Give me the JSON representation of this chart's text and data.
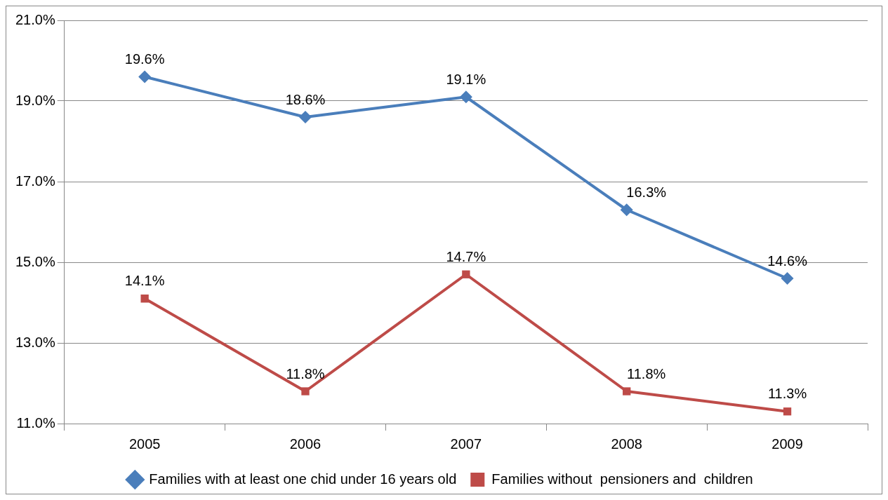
{
  "chart_data": {
    "type": "line",
    "categories": [
      "2005",
      "2006",
      "2007",
      "2008",
      "2009"
    ],
    "series": [
      {
        "name": "Families with at least one chid under 16 years old",
        "color": "#4a7ebb",
        "marker": "diamond",
        "values": [
          19.6,
          18.6,
          19.1,
          16.3,
          14.6
        ],
        "value_labels": [
          "19.6%",
          "18.6%",
          "19.1%",
          "16.3%",
          "14.6%"
        ]
      },
      {
        "name": "Families without  pensioners and  children",
        "color": "#be4b48",
        "marker": "square",
        "values": [
          14.1,
          11.8,
          14.7,
          11.8,
          11.3
        ],
        "value_labels": [
          "14.1%",
          "11.8%",
          "14.7%",
          "11.8%",
          "11.3%"
        ]
      }
    ],
    "ylim": [
      11,
      21
    ],
    "yticks": [
      {
        "value": 11,
        "label": "11.0%"
      },
      {
        "value": 13,
        "label": "13.0%"
      },
      {
        "value": 15,
        "label": "15.0%"
      },
      {
        "value": 17,
        "label": "17.0%"
      },
      {
        "value": 19,
        "label": "19.0%"
      },
      {
        "value": 21,
        "label": "21.0%"
      }
    ],
    "grid": "y",
    "legend": "bottom",
    "line_style": "solid"
  }
}
